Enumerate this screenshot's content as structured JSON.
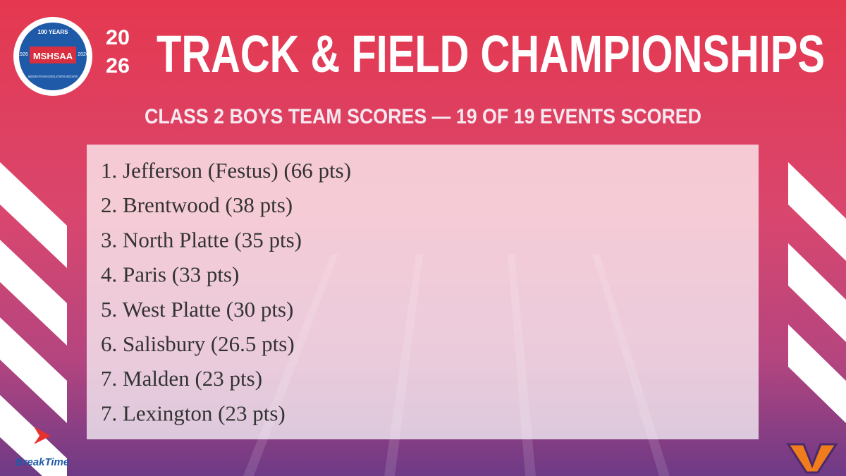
{
  "logo": {
    "top": "100 YEARS",
    "left_year": "1926",
    "name": "MSHSAA",
    "right_year": "2026",
    "ring": "MISSOURI STATE HIGH SCHOOL ACTIVITIES ASSOCIATION"
  },
  "header": {
    "year_top": "20",
    "year_bottom": "26",
    "title": "TRACK & FIELD CHAMPIONSHIPS",
    "subtitle": "CLASS 2 BOYS TEAM SCORES — 19 OF 19 EVENTS SCORED"
  },
  "standings": [
    "1. Jefferson (Festus) (66 pts)",
    "2. Brentwood (38 pts)",
    "3. North Platte (35 pts)",
    "4. Paris (33 pts)",
    "5. West Platte (30 pts)",
    "6. Salisbury (26.5 pts)",
    "7. Malden (23 pts)",
    "7. Lexington (23 pts)"
  ],
  "sponsor": "BreakTime"
}
